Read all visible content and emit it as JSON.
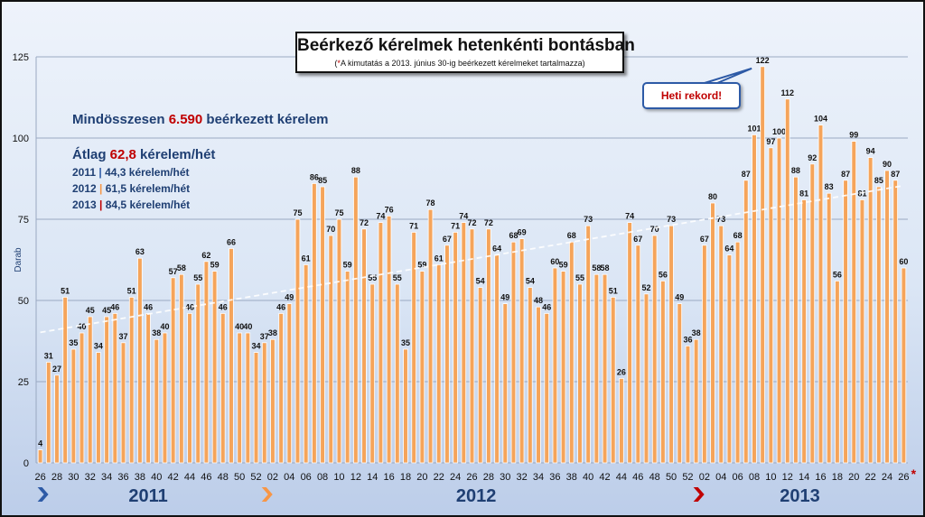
{
  "title": "Beérkező kérelmek hetenkénti bontásban",
  "subtitle_star": "*",
  "subtitle_text": "A kimutatás a 2013. június 30-ig beérkezett kérelmeket tartalmazza)",
  "subtitle_open": "(",
  "summary": {
    "total_prefix": "Mindösszesen",
    "total_value": "6.590",
    "total_suffix": "beérkezett kérelem",
    "avg_prefix": "Átlag",
    "avg_value": "62,8",
    "avg_suffix": "kérelem/hét",
    "years": [
      {
        "year": "2011",
        "sep": "|",
        "text": "44,3 kérelem/hét",
        "sep_color": "#2d5aa6"
      },
      {
        "year": "2012",
        "sep": "|",
        "text": "61,5 kérelem/hét",
        "sep_color": "#f79646"
      },
      {
        "year": "2013",
        "sep": "|",
        "text": "84,5 kérelem/hét",
        "sep_color": "#c00000"
      }
    ]
  },
  "callout": "Heti rekord!",
  "end_marker": "*",
  "colors": {
    "bar_fill": "#f5a45a",
    "bar_edge": "#ffffff",
    "axis_text": "#111111",
    "year_text": "#1f3f73",
    "trend": "#ffffff"
  },
  "chart_data": {
    "type": "bar",
    "ylabel": "Darab",
    "ylim": [
      0,
      125
    ],
    "yticks": [
      0,
      25,
      50,
      75,
      100,
      125
    ],
    "grid": true,
    "trendline": "linear",
    "categories": [
      "26",
      "27",
      "28",
      "29",
      "30",
      "31",
      "32",
      "33",
      "34",
      "35",
      "36",
      "37",
      "38",
      "39",
      "40",
      "41",
      "42",
      "43",
      "44",
      "45",
      "46",
      "47",
      "48",
      "49",
      "50",
      "51",
      "52",
      "01",
      "02",
      "03",
      "04",
      "05",
      "06",
      "07",
      "08",
      "09",
      "10",
      "11",
      "12",
      "13",
      "14",
      "15",
      "16",
      "17",
      "18",
      "19",
      "20",
      "21",
      "22",
      "23",
      "24",
      "25",
      "26",
      "27",
      "28",
      "29",
      "30",
      "31",
      "32",
      "33",
      "34",
      "35",
      "36",
      "37",
      "38",
      "39",
      "40",
      "41",
      "42",
      "43",
      "44",
      "45",
      "46",
      "47",
      "48",
      "49",
      "50",
      "51",
      "52",
      "01",
      "02",
      "03",
      "04",
      "05",
      "06",
      "07",
      "08",
      "09",
      "10",
      "11",
      "12",
      "13",
      "14",
      "15",
      "16",
      "17",
      "18",
      "19",
      "20",
      "21",
      "22",
      "23",
      "24",
      "25",
      "26"
    ],
    "values": [
      4,
      31,
      27,
      51,
      35,
      40,
      45,
      34,
      45,
      46,
      37,
      51,
      63,
      46,
      38,
      40,
      57,
      58,
      46,
      55,
      62,
      59,
      46,
      66,
      40,
      40,
      34,
      37,
      38,
      46,
      49,
      75,
      61,
      86,
      85,
      70,
      75,
      59,
      88,
      72,
      55,
      74,
      76,
      55,
      35,
      71,
      59,
      78,
      61,
      67,
      71,
      74,
      72,
      54,
      72,
      64,
      49,
      68,
      69,
      54,
      48,
      46,
      60,
      59,
      68,
      55,
      73,
      58,
      58,
      51,
      26,
      74,
      67,
      52,
      70,
      56,
      73,
      49,
      36,
      38,
      67,
      80,
      73,
      64,
      68,
      87,
      101,
      122,
      97,
      100,
      112,
      88,
      81,
      92,
      104,
      83,
      56,
      87,
      99,
      81,
      94,
      85,
      90,
      87,
      60
    ],
    "xtick_labels": [
      "26",
      "28",
      "30",
      "32",
      "34",
      "36",
      "38",
      "40",
      "42",
      "44",
      "46",
      "48",
      "50",
      "52",
      "02",
      "04",
      "06",
      "08",
      "10",
      "12",
      "14",
      "16",
      "18",
      "20",
      "22",
      "24",
      "26",
      "28",
      "30",
      "32",
      "34",
      "36",
      "38",
      "40",
      "42",
      "44",
      "46",
      "48",
      "50",
      "52",
      "02",
      "04",
      "06",
      "08",
      "10",
      "12",
      "14",
      "16",
      "18",
      "20",
      "22",
      "24",
      "26"
    ],
    "year_labels": [
      {
        "label": "2011",
        "start_index": 0,
        "end_index": 26,
        "arrow_color": "#2d5aa6"
      },
      {
        "label": "2012",
        "start_index": 27,
        "end_index": 78,
        "arrow_color": "#f79646"
      },
      {
        "label": "2013",
        "start_index": 79,
        "end_index": 104,
        "arrow_color": "#c00000"
      }
    ]
  }
}
